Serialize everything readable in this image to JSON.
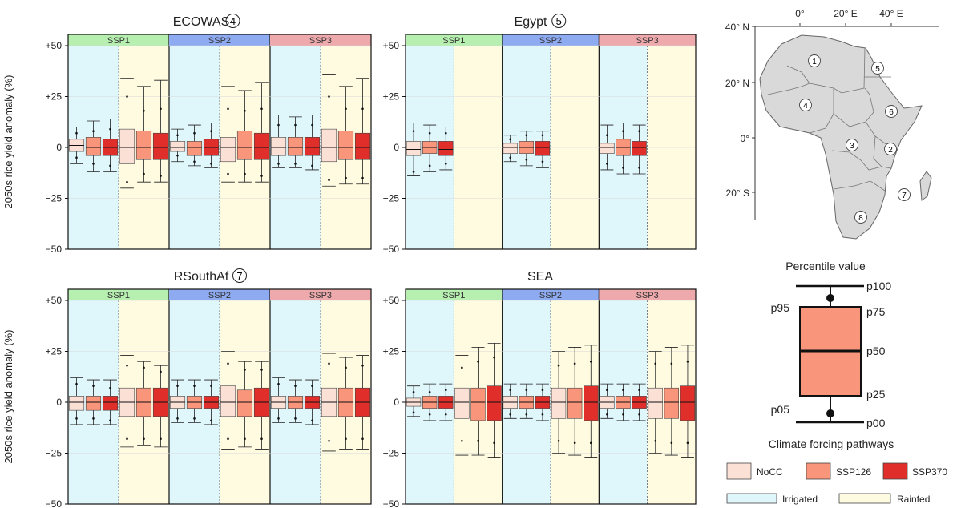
{
  "colors": {
    "irrigated_bg": "#dff6fa",
    "rainfed_bg": "#fefbe0",
    "ssp1_header": "#b6efb0",
    "ssp2_header": "#8eaaf0",
    "ssp3_header": "#eea9ac",
    "NoCC": "#fbe0d6",
    "SSP126": "#f9957a",
    "SSP370": "#e02f2a",
    "map_fill": "#d9d9d9"
  },
  "y_axis_label": "2050s rice yield anomaly (%)",
  "y_ticks": [
    "+50",
    "+25",
    "0",
    "−25",
    "−50"
  ],
  "ssp_headers": [
    "SSP1",
    "SSP2",
    "SSP3"
  ],
  "chart_data": [
    {
      "type": "box",
      "title": "ECOWAS",
      "region_number": "4",
      "ylabel": "2050s rice yield anomaly (%)",
      "ylim": [
        -50,
        50
      ],
      "groups": [
        {
          "ssp": "SSP1",
          "irrigated": [
            [
              -8,
              -5,
              -2,
              1,
              4,
              7,
              10
            ],
            [
              -12,
              -8,
              -4,
              0,
              5,
              8,
              13
            ],
            [
              -12,
              -9,
              -4,
              0,
              4,
              9,
              14
            ]
          ],
          "rainfed": [
            [
              -20,
              -17,
              -8,
              0,
              9,
              25,
              34
            ],
            [
              -17,
              -13,
              -6,
              0,
              8,
              18,
              30
            ],
            [
              -17,
              -14,
              -6,
              0,
              7,
              19,
              33
            ]
          ]
        },
        {
          "ssp": "SSP2",
          "irrigated": [
            [
              -7,
              -4,
              -2,
              0,
              3,
              6,
              9
            ],
            [
              -9,
              -7,
              -4,
              0,
              3,
              7,
              11
            ],
            [
              -10,
              -8,
              -4,
              0,
              4,
              8,
              12
            ]
          ],
          "rainfed": [
            [
              -17,
              -13,
              -7,
              0,
              5,
              19,
              30
            ],
            [
              -17,
              -13,
              -6,
              0,
              8,
              18,
              28
            ],
            [
              -17,
              -14,
              -6,
              0,
              7,
              19,
              32
            ]
          ]
        },
        {
          "ssp": "SSP3",
          "irrigated": [
            [
              -10,
              -8,
              -4,
              0,
              5,
              11,
              16
            ],
            [
              -10,
              -8,
              -4,
              0,
              5,
              11,
              15
            ],
            [
              -11,
              -9,
              -4,
              0,
              5,
              11,
              16
            ]
          ],
          "rainfed": [
            [
              -19,
              -16,
              -7,
              0,
              9,
              25,
              36
            ],
            [
              -18,
              -15,
              -6,
              0,
              8,
              19,
              30
            ],
            [
              -18,
              -15,
              -6,
              0,
              7,
              19,
              34
            ]
          ]
        }
      ]
    },
    {
      "type": "box",
      "title": "Egypt",
      "region_number": "5",
      "ylabel": "2050s rice yield anomaly (%)",
      "ylim": [
        -50,
        50
      ],
      "groups": [
        {
          "ssp": "SSP1",
          "irrigated": [
            [
              -14,
              -12,
              -4,
              -1,
              3,
              8,
              12
            ],
            [
              -12,
              -9,
              -3,
              0,
              3,
              7,
              11
            ],
            [
              -11,
              -8,
              -4,
              -1,
              3,
              7,
              10
            ]
          ],
          "rainfed": []
        },
        {
          "ssp": "SSP2",
          "irrigated": [
            [
              -7,
              -5,
              -3,
              0,
              2,
              4,
              6
            ],
            [
              -9,
              -6,
              -3,
              0,
              3,
              6,
              8
            ],
            [
              -10,
              -7,
              -4,
              0,
              3,
              6,
              8
            ]
          ],
          "rainfed": []
        },
        {
          "ssp": "SSP3",
          "irrigated": [
            [
              -11,
              -8,
              -3,
              0,
              2,
              6,
              11
            ],
            [
              -13,
              -10,
              -4,
              0,
              4,
              8,
              12
            ],
            [
              -13,
              -10,
              -4,
              0,
              3,
              8,
              11
            ]
          ],
          "rainfed": []
        }
      ]
    },
    {
      "type": "box",
      "title": "RSouthAf",
      "region_number": "7",
      "ylabel": "2050s rice yield anomaly (%)",
      "ylim": [
        -50,
        50
      ],
      "groups": [
        {
          "ssp": "SSP1",
          "irrigated": [
            [
              -11,
              -8,
              -4,
              0,
              3,
              9,
              12
            ],
            [
              -11,
              -8,
              -4,
              0,
              3,
              8,
              11
            ],
            [
              -11,
              -9,
              -4,
              0,
              3,
              7,
              11
            ]
          ],
          "rainfed": [
            [
              -22,
              -18,
              -7,
              0,
              7,
              18,
              23
            ],
            [
              -21,
              -18,
              -7,
              0,
              7,
              17,
              20
            ],
            [
              -22,
              -18,
              -7,
              0,
              7,
              15,
              18
            ]
          ]
        },
        {
          "ssp": "SSP2",
          "irrigated": [
            [
              -10,
              -8,
              -3,
              0,
              3,
              8,
              11
            ],
            [
              -10,
              -8,
              -3,
              0,
              3,
              8,
              11
            ],
            [
              -11,
              -9,
              -3,
              0,
              3,
              8,
              11
            ]
          ],
          "rainfed": [
            [
              -23,
              -18,
              -7,
              0,
              8,
              19,
              25
            ],
            [
              -22,
              -18,
              -7,
              0,
              6,
              16,
              20
            ],
            [
              -23,
              -18,
              -7,
              0,
              7,
              16,
              20
            ]
          ]
        },
        {
          "ssp": "SSP3",
          "irrigated": [
            [
              -10,
              -8,
              -3,
              0,
              3,
              9,
              12
            ],
            [
              -10,
              -8,
              -3,
              0,
              3,
              8,
              11
            ],
            [
              -11,
              -9,
              -3,
              0,
              3,
              8,
              11
            ]
          ],
          "rainfed": [
            [
              -24,
              -19,
              -7,
              0,
              7,
              19,
              24
            ],
            [
              -23,
              -18,
              -7,
              0,
              7,
              17,
              22
            ],
            [
              -23,
              -18,
              -7,
              0,
              7,
              18,
              23
            ]
          ]
        }
      ]
    },
    {
      "type": "box",
      "title": "SEA",
      "ylabel": "2050s rice yield anomaly (%)",
      "ylim": [
        -50,
        50
      ],
      "groups": [
        {
          "ssp": "SSP1",
          "irrigated": [
            [
              -7,
              -5,
              -2,
              0,
              2,
              5,
              8
            ],
            [
              -9,
              -6,
              -3,
              0,
              3,
              5,
              9
            ],
            [
              -9,
              -6,
              -3,
              0,
              3,
              6,
              9
            ]
          ],
          "rainfed": [
            [
              -26,
              -19,
              -8,
              0,
              7,
              17,
              23
            ],
            [
              -26,
              -19,
              -9,
              0,
              7,
              20,
              27
            ],
            [
              -27,
              -20,
              -9,
              0,
              8,
              22,
              29
            ]
          ]
        },
        {
          "ssp": "SSP2",
          "irrigated": [
            [
              -8,
              -6,
              -3,
              0,
              3,
              6,
              9
            ],
            [
              -8,
              -6,
              -3,
              0,
              3,
              6,
              9
            ],
            [
              -9,
              -6,
              -3,
              0,
              3,
              6,
              9
            ]
          ],
          "rainfed": [
            [
              -25,
              -19,
              -8,
              0,
              7,
              18,
              25
            ],
            [
              -26,
              -20,
              -8,
              0,
              7,
              19,
              27
            ],
            [
              -27,
              -20,
              -9,
              0,
              8,
              20,
              28
            ]
          ]
        },
        {
          "ssp": "SSP3",
          "irrigated": [
            [
              -8,
              -6,
              -3,
              0,
              3,
              6,
              9
            ],
            [
              -9,
              -6,
              -3,
              0,
              3,
              6,
              9
            ],
            [
              -9,
              -6,
              -3,
              0,
              3,
              6,
              9
            ]
          ],
          "rainfed": [
            [
              -25,
              -19,
              -8,
              0,
              7,
              19,
              25
            ],
            [
              -26,
              -20,
              -8,
              0,
              7,
              19,
              27
            ],
            [
              -27,
              -20,
              -9,
              0,
              8,
              20,
              28
            ]
          ]
        }
      ]
    }
  ],
  "map": {
    "top_labels": [
      "0°",
      "20° E",
      "40° E"
    ],
    "side_labels": [
      "40° N",
      "20° N",
      "0°",
      "20° S"
    ],
    "region_numbers": [
      "1",
      "2",
      "3",
      "4",
      "5",
      "6",
      "7",
      "8"
    ]
  },
  "percentile_legend": {
    "title": "Percentile value",
    "labels": [
      "p100",
      "p95",
      "p75",
      "p50",
      "p25",
      "p05",
      "p00"
    ]
  },
  "pathway_legend": {
    "title": "Climate forcing pathways",
    "items": [
      "NoCC",
      "SSP126",
      "SSP370"
    ],
    "water": [
      "Irrigated",
      "Rainfed"
    ]
  }
}
